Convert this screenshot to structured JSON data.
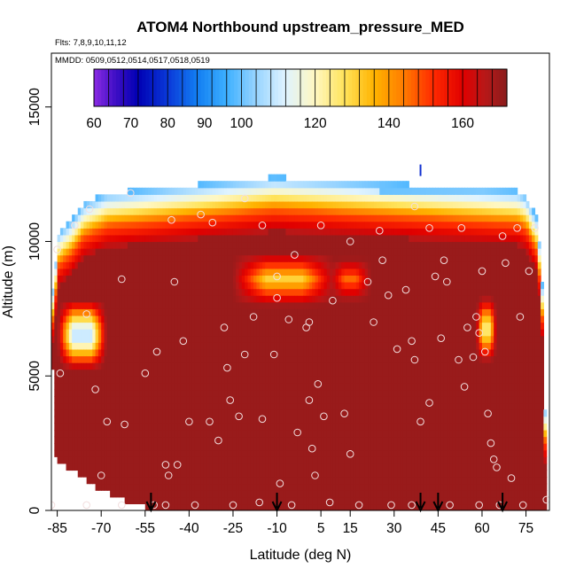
{
  "chart_data": {
    "type": "heatmap",
    "title": "ATOM4 Northbound upstream_pressure_MED",
    "subtitle_flights": "Flts: 7,8,9,10,11,12",
    "subtitle_dates": "MMDD: 0509,0512,0514,0517,0518,0519",
    "xlabel": "Latitude (deg N)",
    "ylabel": "Altitude (m)",
    "xlim": [
      -87,
      83
    ],
    "ylim": [
      0,
      17000
    ],
    "x_ticks": [
      -85,
      -70,
      -55,
      -40,
      -25,
      -10,
      5,
      15,
      30,
      45,
      60,
      75
    ],
    "y_ticks": [
      0,
      5000,
      10000,
      15000
    ],
    "colorbar": {
      "min": 60,
      "max": 172,
      "ticks": [
        60,
        70,
        80,
        90,
        100,
        120,
        140,
        160
      ],
      "stops": [
        {
          "v": 60,
          "c": "#8a2be2"
        },
        {
          "v": 66,
          "c": "#3d0ec4"
        },
        {
          "v": 72,
          "c": "#0000b4"
        },
        {
          "v": 80,
          "c": "#0a38d8"
        },
        {
          "v": 88,
          "c": "#127ef2"
        },
        {
          "v": 96,
          "c": "#3db0ff"
        },
        {
          "v": 104,
          "c": "#98d4ff"
        },
        {
          "v": 112,
          "c": "#dff3ff"
        },
        {
          "v": 120,
          "c": "#fff7c0"
        },
        {
          "v": 128,
          "c": "#ffe35a"
        },
        {
          "v": 136,
          "c": "#ffb300"
        },
        {
          "v": 144,
          "c": "#ff7b00"
        },
        {
          "v": 152,
          "c": "#ff2a00"
        },
        {
          "v": 160,
          "c": "#e00000"
        },
        {
          "v": 166,
          "c": "#b81818"
        },
        {
          "v": 172,
          "c": "#8a1c1c"
        }
      ],
      "background": "#a81c1c"
    },
    "flight_arrows_lat": [
      -53,
      -10,
      39,
      45,
      67
    ],
    "tropopause_marker": {
      "lat": 39,
      "alt": 12400
    },
    "top_envelope": [
      [
        -86,
        8300
      ],
      [
        -85,
        10300
      ],
      [
        -80,
        10800
      ],
      [
        -76,
        11400
      ],
      [
        -68,
        11800
      ],
      [
        -20,
        12300
      ],
      [
        -11,
        12400
      ],
      [
        72,
        11900
      ],
      [
        75,
        11700
      ],
      [
        79,
        10800
      ],
      [
        80,
        9200
      ],
      [
        81,
        7600
      ],
      [
        82,
        0
      ]
    ],
    "bottom_envelope": [
      [
        -86,
        5200
      ],
      [
        -86,
        2000
      ],
      [
        -84,
        1800
      ],
      [
        -80,
        1500
      ],
      [
        -76,
        1200
      ],
      [
        -72,
        900
      ],
      [
        -66,
        600
      ],
      [
        -62,
        400
      ],
      [
        -58,
        200
      ],
      [
        -50,
        0
      ],
      [
        82,
        0
      ]
    ],
    "points": [
      [
        -84,
        5100
      ],
      [
        -75,
        7300
      ],
      [
        -72,
        4500
      ],
      [
        -70,
        1300
      ],
      [
        -68,
        3300
      ],
      [
        -62,
        3200
      ],
      [
        -55,
        5100
      ],
      [
        -51,
        5900
      ],
      [
        -48,
        1700
      ],
      [
        -48,
        200
      ],
      [
        -47,
        1300
      ],
      [
        -45,
        8500
      ],
      [
        -44,
        1700
      ],
      [
        -42,
        6300
      ],
      [
        -40,
        3300
      ],
      [
        -33,
        3300
      ],
      [
        -30,
        2600
      ],
      [
        -28,
        6800
      ],
      [
        -27,
        5300
      ],
      [
        -26,
        4100
      ],
      [
        -23,
        3500
      ],
      [
        -21,
        5800
      ],
      [
        -18,
        7200
      ],
      [
        -15,
        3400
      ],
      [
        -11,
        5800
      ],
      [
        -10,
        7900
      ],
      [
        -9,
        1000
      ],
      [
        -6,
        7100
      ],
      [
        -3,
        2900
      ],
      [
        0,
        6800
      ],
      [
        1,
        7000
      ],
      [
        1,
        4100
      ],
      [
        2,
        2300
      ],
      [
        3,
        1300
      ],
      [
        4,
        4700
      ],
      [
        6,
        3500
      ],
      [
        9,
        7800
      ],
      [
        13,
        3600
      ],
      [
        15,
        2100
      ],
      [
        23,
        7000
      ],
      [
        26,
        9300
      ],
      [
        28,
        8000
      ],
      [
        31,
        6000
      ],
      [
        34,
        8200
      ],
      [
        36,
        6300
      ],
      [
        37,
        5600
      ],
      [
        39,
        3300
      ],
      [
        42,
        4000
      ],
      [
        44,
        8700
      ],
      [
        46,
        6400
      ],
      [
        48,
        8500
      ],
      [
        52,
        5600
      ],
      [
        54,
        4600
      ],
      [
        55,
        6800
      ],
      [
        57,
        5700
      ],
      [
        58,
        7200
      ],
      [
        59,
        6600
      ],
      [
        61,
        5900
      ],
      [
        62,
        3600
      ],
      [
        63,
        2500
      ],
      [
        64,
        1900
      ],
      [
        65,
        1600
      ],
      [
        68,
        9200
      ],
      [
        70,
        1200
      ],
      [
        73,
        7200
      ],
      [
        76,
        8900
      ],
      [
        -85,
        9700
      ],
      [
        -79,
        10600
      ],
      [
        -74,
        11200
      ],
      [
        -63,
        8600
      ],
      [
        -60,
        11800
      ],
      [
        -46,
        10800
      ],
      [
        -36,
        11000
      ],
      [
        -32,
        10700
      ],
      [
        -21,
        11600
      ],
      [
        -15,
        10600
      ],
      [
        -10,
        8700
      ],
      [
        -4,
        9500
      ],
      [
        5,
        10600
      ],
      [
        15,
        10000
      ],
      [
        21,
        8500
      ],
      [
        25,
        10400
      ],
      [
        37,
        11300
      ],
      [
        42,
        10500
      ],
      [
        47,
        9300
      ],
      [
        53,
        10500
      ],
      [
        60,
        8900
      ],
      [
        67,
        10200
      ],
      [
        72,
        10500
      ],
      [
        78,
        10500
      ],
      [
        -87,
        200
      ],
      [
        -75,
        200
      ],
      [
        -63,
        200
      ],
      [
        -52,
        200
      ],
      [
        -38,
        200
      ],
      [
        -25,
        200
      ],
      [
        -16,
        300
      ],
      [
        -5,
        200
      ],
      [
        8,
        300
      ],
      [
        18,
        200
      ],
      [
        29,
        200
      ],
      [
        36,
        200
      ],
      [
        49,
        200
      ],
      [
        59,
        200
      ],
      [
        66,
        200
      ],
      [
        74,
        200
      ],
      [
        82,
        400
      ]
    ]
  }
}
